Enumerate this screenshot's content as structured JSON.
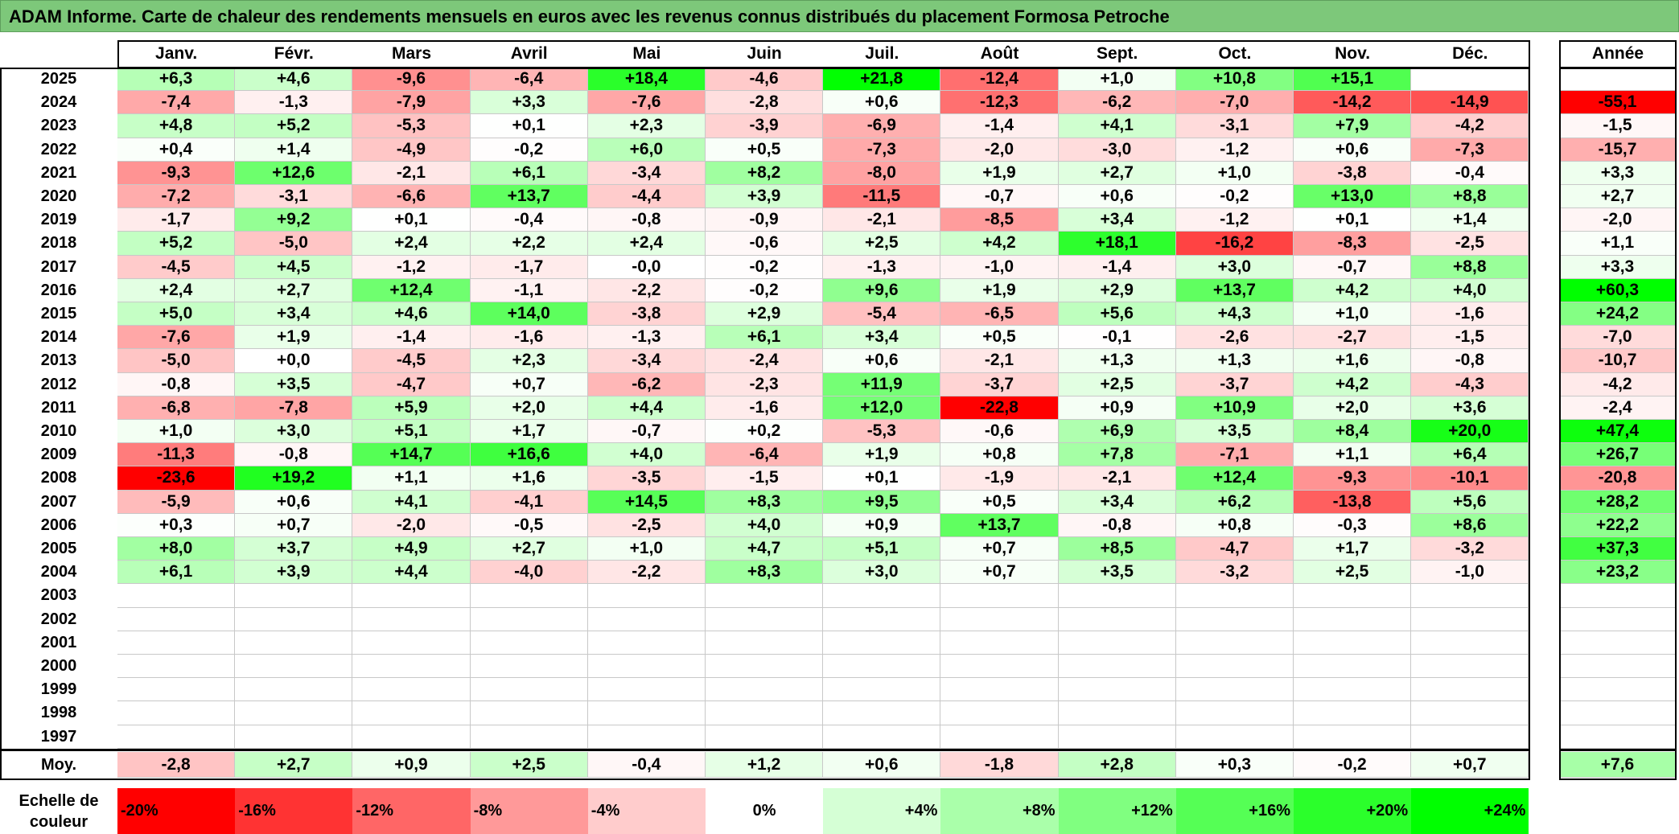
{
  "title": "ADAM Informe. Carte de chaleur des rendements mensuels en euros avec les revenus connus distribués du placement Formosa Petroche",
  "chart_data": {
    "type": "heatmap",
    "months": [
      "Janv.",
      "Févr.",
      "Mars",
      "Avril",
      "Mai",
      "Juin",
      "Juil.",
      "Août",
      "Sept.",
      "Oct.",
      "Nov.",
      "Déc."
    ],
    "annual_header": "Année",
    "avg_label": "Moy.",
    "scale_label_line1": "Echelle de",
    "scale_label_line2": "couleur",
    "rows": [
      {
        "year": "2025",
        "values": [
          "+6,3",
          "+4,6",
          "-9,6",
          "-6,4",
          "+18,4",
          "-4,6",
          "+21,8",
          "-12,4",
          "+1,0",
          "+10,8",
          "+15,1",
          ""
        ],
        "annual": ""
      },
      {
        "year": "2024",
        "values": [
          "-7,4",
          "-1,3",
          "-7,9",
          "+3,3",
          "-7,6",
          "-2,8",
          "+0,6",
          "-12,3",
          "-6,2",
          "-7,0",
          "-14,2",
          "-14,9"
        ],
        "annual": "-55,1"
      },
      {
        "year": "2023",
        "values": [
          "+4,8",
          "+5,2",
          "-5,3",
          "+0,1",
          "+2,3",
          "-3,9",
          "-6,9",
          "-1,4",
          "+4,1",
          "-3,1",
          "+7,9",
          "-4,2"
        ],
        "annual": "-1,5"
      },
      {
        "year": "2022",
        "values": [
          "+0,4",
          "+1,4",
          "-4,9",
          "-0,2",
          "+6,0",
          "+0,5",
          "-7,3",
          "-2,0",
          "-3,0",
          "-1,2",
          "+0,6",
          "-7,3"
        ],
        "annual": "-15,7"
      },
      {
        "year": "2021",
        "values": [
          "-9,3",
          "+12,6",
          "-2,1",
          "+6,1",
          "-3,4",
          "+8,2",
          "-8,0",
          "+1,9",
          "+2,7",
          "+1,0",
          "-3,8",
          "-0,4"
        ],
        "annual": "+3,3"
      },
      {
        "year": "2020",
        "values": [
          "-7,2",
          "-3,1",
          "-6,6",
          "+13,7",
          "-4,4",
          "+3,9",
          "-11,5",
          "-0,7",
          "+0,6",
          "-0,2",
          "+13,0",
          "+8,8"
        ],
        "annual": "+2,7"
      },
      {
        "year": "2019",
        "values": [
          "-1,7",
          "+9,2",
          "+0,1",
          "-0,4",
          "-0,8",
          "-0,9",
          "-2,1",
          "-8,5",
          "+3,4",
          "-1,2",
          "+0,1",
          "+1,4"
        ],
        "annual": "-2,0"
      },
      {
        "year": "2018",
        "values": [
          "+5,2",
          "-5,0",
          "+2,4",
          "+2,2",
          "+2,4",
          "-0,6",
          "+2,5",
          "+4,2",
          "+18,1",
          "-16,2",
          "-8,3",
          "-2,5"
        ],
        "annual": "+1,1"
      },
      {
        "year": "2017",
        "values": [
          "-4,5",
          "+4,5",
          "-1,2",
          "-1,7",
          "-0,0",
          "-0,2",
          "-1,3",
          "-1,0",
          "-1,4",
          "+3,0",
          "-0,7",
          "+8,8"
        ],
        "annual": "+3,3"
      },
      {
        "year": "2016",
        "values": [
          "+2,4",
          "+2,7",
          "+12,4",
          "-1,1",
          "-2,2",
          "-0,2",
          "+9,6",
          "+1,9",
          "+2,9",
          "+13,7",
          "+4,2",
          "+4,0"
        ],
        "annual": "+60,3"
      },
      {
        "year": "2015",
        "values": [
          "+5,0",
          "+3,4",
          "+4,6",
          "+14,0",
          "-3,8",
          "+2,9",
          "-5,4",
          "-6,5",
          "+5,6",
          "+4,3",
          "+1,0",
          "-1,6"
        ],
        "annual": "+24,2"
      },
      {
        "year": "2014",
        "values": [
          "-7,6",
          "+1,9",
          "-1,4",
          "-1,6",
          "-1,3",
          "+6,1",
          "+3,4",
          "+0,5",
          "-0,1",
          "-2,6",
          "-2,7",
          "-1,5"
        ],
        "annual": "-7,0"
      },
      {
        "year": "2013",
        "values": [
          "-5,0",
          "+0,0",
          "-4,5",
          "+2,3",
          "-3,4",
          "-2,4",
          "+0,6",
          "-2,1",
          "+1,3",
          "+1,3",
          "+1,6",
          "-0,8"
        ],
        "annual": "-10,7"
      },
      {
        "year": "2012",
        "values": [
          "-0,8",
          "+3,5",
          "-4,7",
          "+0,7",
          "-6,2",
          "-2,3",
          "+11,9",
          "-3,7",
          "+2,5",
          "-3,7",
          "+4,2",
          "-4,3"
        ],
        "annual": "-4,2"
      },
      {
        "year": "2011",
        "values": [
          "-6,8",
          "-7,8",
          "+5,9",
          "+2,0",
          "+4,4",
          "-1,6",
          "+12,0",
          "-22,8",
          "+0,9",
          "+10,9",
          "+2,0",
          "+3,6"
        ],
        "annual": "-2,4"
      },
      {
        "year": "2010",
        "values": [
          "+1,0",
          "+3,0",
          "+5,1",
          "+1,7",
          "-0,7",
          "+0,2",
          "-5,3",
          "-0,6",
          "+6,9",
          "+3,5",
          "+8,4",
          "+20,0"
        ],
        "annual": "+47,4"
      },
      {
        "year": "2009",
        "values": [
          "-11,3",
          "-0,8",
          "+14,7",
          "+16,6",
          "+4,0",
          "-6,4",
          "+1,9",
          "+0,8",
          "+7,8",
          "-7,1",
          "+1,1",
          "+6,4"
        ],
        "annual": "+26,7"
      },
      {
        "year": "2008",
        "values": [
          "-23,6",
          "+19,2",
          "+1,1",
          "+1,6",
          "-3,5",
          "-1,5",
          "+0,1",
          "-1,9",
          "-2,1",
          "+12,4",
          "-9,3",
          "-10,1"
        ],
        "annual": "-20,8"
      },
      {
        "year": "2007",
        "values": [
          "-5,9",
          "+0,6",
          "+4,1",
          "-4,1",
          "+14,5",
          "+8,3",
          "+9,5",
          "+0,5",
          "+3,4",
          "+6,2",
          "-13,8",
          "+5,6"
        ],
        "annual": "+28,2"
      },
      {
        "year": "2006",
        "values": [
          "+0,3",
          "+0,7",
          "-2,0",
          "-0,5",
          "-2,5",
          "+4,0",
          "+0,9",
          "+13,7",
          "-0,8",
          "+0,8",
          "-0,3",
          "+8,6"
        ],
        "annual": "+22,2"
      },
      {
        "year": "2005",
        "values": [
          "+8,0",
          "+3,7",
          "+4,9",
          "+2,7",
          "+1,0",
          "+4,7",
          "+5,1",
          "+0,7",
          "+8,5",
          "-4,7",
          "+1,7",
          "-3,2"
        ],
        "annual": "+37,3"
      },
      {
        "year": "2004",
        "values": [
          "+6,1",
          "+3,9",
          "+4,4",
          "-4,0",
          "-2,2",
          "+8,3",
          "+3,0",
          "+0,7",
          "+3,5",
          "-3,2",
          "+2,5",
          "-1,0"
        ],
        "annual": "+23,2"
      },
      {
        "year": "2003",
        "values": [
          "",
          "",
          "",
          "",
          "",
          "",
          "",
          "",
          "",
          "",
          "",
          ""
        ],
        "annual": ""
      },
      {
        "year": "2002",
        "values": [
          "",
          "",
          "",
          "",
          "",
          "",
          "",
          "",
          "",
          "",
          "",
          ""
        ],
        "annual": ""
      },
      {
        "year": "2001",
        "values": [
          "",
          "",
          "",
          "",
          "",
          "",
          "",
          "",
          "",
          "",
          "",
          ""
        ],
        "annual": ""
      },
      {
        "year": "2000",
        "values": [
          "",
          "",
          "",
          "",
          "",
          "",
          "",
          "",
          "",
          "",
          "",
          ""
        ],
        "annual": ""
      },
      {
        "year": "1999",
        "values": [
          "",
          "",
          "",
          "",
          "",
          "",
          "",
          "",
          "",
          "",
          "",
          ""
        ],
        "annual": ""
      },
      {
        "year": "1998",
        "values": [
          "",
          "",
          "",
          "",
          "",
          "",
          "",
          "",
          "",
          "",
          "",
          ""
        ],
        "annual": ""
      },
      {
        "year": "1997",
        "values": [
          "",
          "",
          "",
          "",
          "",
          "",
          "",
          "",
          "",
          "",
          "",
          ""
        ],
        "annual": ""
      }
    ],
    "averages": [
      "-2,8",
      "+2,7",
      "+0,9",
      "+2,5",
      "-0,4",
      "+1,2",
      "+0,6",
      "-1,8",
      "+2,8",
      "+0,3",
      "-0,2",
      "+0,7"
    ],
    "annual_average": "+7,6",
    "scale": [
      {
        "label": "-20%",
        "value": -20,
        "align": "left"
      },
      {
        "label": "-16%",
        "value": -16,
        "align": "left"
      },
      {
        "label": "-12%",
        "value": -12,
        "align": "left"
      },
      {
        "label": "-8%",
        "value": -8,
        "align": "left"
      },
      {
        "label": "-4%",
        "value": -4,
        "align": "left"
      },
      {
        "label": "0%",
        "value": 0,
        "align": "center"
      },
      {
        "label": "+4%",
        "value": 4,
        "align": "right"
      },
      {
        "label": "+8%",
        "value": 8,
        "align": "right"
      },
      {
        "label": "+12%",
        "value": 12,
        "align": "right"
      },
      {
        "label": "+16%",
        "value": 16,
        "align": "right"
      },
      {
        "label": "+20%",
        "value": 20,
        "align": "right"
      },
      {
        "label": "+24%",
        "value": 24,
        "align": "right"
      }
    ]
  }
}
